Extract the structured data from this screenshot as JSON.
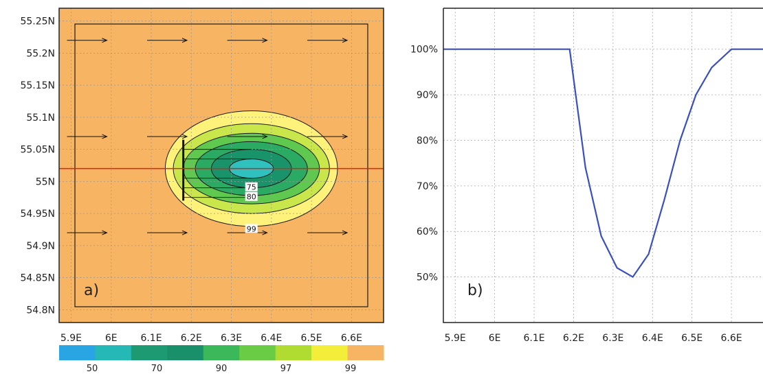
{
  "chart_data": [
    {
      "type": "heatmap",
      "panel_label": "a)",
      "x_ticks": [
        "5.9E",
        "6E",
        "6.1E",
        "6.2E",
        "6.3E",
        "6.4E",
        "6.5E",
        "6.6E"
      ],
      "x_tick_values": [
        5.9,
        6.0,
        6.1,
        6.2,
        6.3,
        6.4,
        6.5,
        6.6
      ],
      "y_ticks": [
        "54.8N",
        "54.85N",
        "54.9N",
        "54.95N",
        "55N",
        "55.05N",
        "55.1N",
        "55.15N",
        "55.2N",
        "55.25N"
      ],
      "y_tick_values": [
        54.8,
        54.85,
        54.9,
        54.95,
        55.0,
        55.05,
        55.1,
        55.15,
        55.2,
        55.25
      ],
      "xlim": [
        5.87,
        6.68
      ],
      "ylim": [
        54.78,
        55.27
      ],
      "grid": true,
      "contour_center": [
        6.35,
        55.02
      ],
      "contours": [
        {
          "level": 99,
          "semi_axes": [
            0.215,
            0.09
          ]
        },
        {
          "level": 97,
          "semi_axes": [
            0.195,
            0.07
          ]
        },
        {
          "level": 90,
          "semi_axes": [
            0.17,
            0.055
          ]
        },
        {
          "level": 80,
          "semi_axes": [
            0.14,
            0.042
          ]
        },
        {
          "level": 70,
          "semi_axes": [
            0.1,
            0.03
          ]
        },
        {
          "level": 60,
          "semi_axes": [
            0.055,
            0.015
          ]
        }
      ],
      "contour_labels": [
        {
          "text": "99",
          "x": 6.35,
          "y": 54.925
        },
        {
          "text": "80",
          "x": 6.35,
          "y": 54.975
        },
        {
          "text": "75",
          "x": 6.35,
          "y": 54.99
        }
      ],
      "transect_latitude": 55.02,
      "colors": {
        "background": "#f7b462",
        "transect": "#e02020",
        "99": "#fff27a",
        "97": "#c9e64a",
        "90": "#5fc84e",
        "80": "#2aaa62",
        "70": "#19946a",
        "60": "#2ec1bd"
      },
      "colorbar": {
        "labels": [
          "50",
          "70",
          "90",
          "97",
          "99"
        ],
        "colors": [
          "#29a5e3",
          "#25b8b5",
          "#1e9a72",
          "#199069",
          "#3bb85a",
          "#6acb45",
          "#b0dc31",
          "#f2ee3a",
          "#f7b462"
        ]
      }
    },
    {
      "type": "line",
      "panel_label": "b)",
      "x_ticks": [
        "5.9E",
        "6E",
        "6.1E",
        "6.2E",
        "6.3E",
        "6.4E",
        "6.5E",
        "6.6E"
      ],
      "x_tick_values": [
        5.9,
        6.0,
        6.1,
        6.2,
        6.3,
        6.4,
        6.5,
        6.6
      ],
      "y_ticks": [
        "50%",
        "60%",
        "70%",
        "80%",
        "90%",
        "100%"
      ],
      "y_tick_values": [
        50,
        60,
        70,
        80,
        90,
        100
      ],
      "xlim": [
        5.87,
        6.68
      ],
      "ylim": [
        40,
        109
      ],
      "grid": true,
      "series": [
        {
          "x": [
            5.87,
            6.19,
            6.23,
            6.27,
            6.31,
            6.35,
            6.39,
            6.43,
            6.47,
            6.51,
            6.55,
            6.6,
            6.68
          ],
          "values": [
            100,
            100,
            74,
            59,
            52,
            50,
            55,
            67,
            80,
            90,
            96,
            100,
            100
          ],
          "color": "#3a4fbf"
        }
      ]
    }
  ]
}
